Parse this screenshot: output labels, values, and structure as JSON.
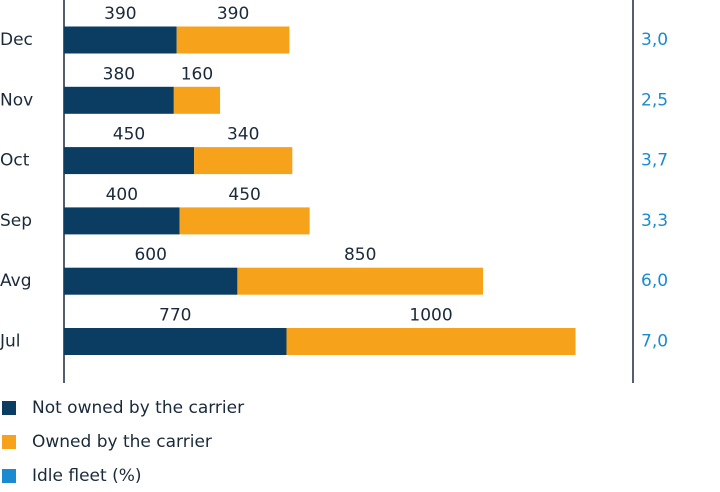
{
  "chart_data": {
    "type": "stacked-bar-horizontal",
    "categories": [
      "Dec",
      "Nov",
      "Oct",
      "Sep",
      "Avg",
      "Jul"
    ],
    "series": [
      {
        "name": "Not owned by the carrier",
        "color": "#0b3d62",
        "values": [
          390,
          380,
          450,
          400,
          600,
          770
        ]
      },
      {
        "name": "Owned by the carrier",
        "color": "#f7a21b",
        "values": [
          390,
          160,
          340,
          450,
          850,
          1000
        ]
      },
      {
        "name": "Idle fleet (%)",
        "color": "#1a8bd1",
        "axis": "y2",
        "values": [
          3.0,
          2.5,
          3.7,
          3.3,
          6.0,
          7.0
        ],
        "value_labels": [
          "3,0",
          "2,5",
          "3,7",
          "3,3",
          "6,0",
          "7,0"
        ]
      }
    ]
  }
}
